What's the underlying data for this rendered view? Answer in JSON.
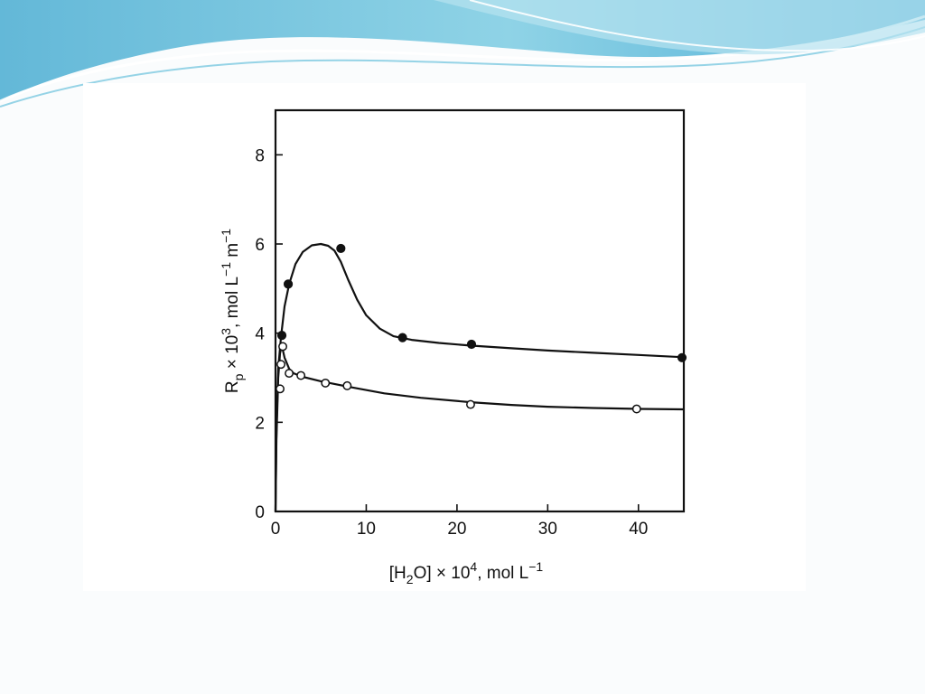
{
  "chart_data": {
    "type": "scatter",
    "xlabel": {
      "pre": "[H",
      "sub": "2",
      "mid": "O] × 10",
      "sup": "4",
      "post": ", mol L",
      "sup2": "−1"
    },
    "ylabel": {
      "pre": "R",
      "sub": "p",
      "mid": " × 10",
      "sup": "3",
      "mid2": ", mol L",
      "sup2": "−1",
      "mid3": " m",
      "sup3": "−1"
    },
    "xlim": [
      0,
      45
    ],
    "ylim": [
      0,
      9
    ],
    "x_ticks": [
      0,
      10,
      20,
      30,
      40
    ],
    "y_ticks": [
      0,
      2,
      4,
      6,
      8
    ],
    "grid": false,
    "colors": {
      "marker": "#111111",
      "line": "#111111",
      "open_fill": "#ffffff"
    },
    "series": [
      {
        "marker": "filled-circle",
        "points": [
          [
            0.7,
            3.95
          ],
          [
            1.4,
            5.1
          ],
          [
            7.2,
            5.9
          ],
          [
            14.0,
            3.9
          ],
          [
            21.6,
            3.75
          ],
          [
            44.8,
            3.45
          ]
        ],
        "curve": [
          [
            0,
            0
          ],
          [
            0.1,
            1.8
          ],
          [
            0.3,
            3.2
          ],
          [
            0.6,
            3.9
          ],
          [
            1.0,
            4.6
          ],
          [
            1.5,
            5.1
          ],
          [
            2.2,
            5.55
          ],
          [
            3.0,
            5.82
          ],
          [
            4.0,
            5.97
          ],
          [
            5.0,
            6.0
          ],
          [
            5.8,
            5.96
          ],
          [
            6.5,
            5.85
          ],
          [
            7.2,
            5.6
          ],
          [
            8.0,
            5.2
          ],
          [
            9.0,
            4.75
          ],
          [
            10.0,
            4.4
          ],
          [
            11.5,
            4.1
          ],
          [
            13.0,
            3.93
          ],
          [
            15.0,
            3.85
          ],
          [
            18.0,
            3.78
          ],
          [
            21.6,
            3.72
          ],
          [
            26.0,
            3.66
          ],
          [
            30.0,
            3.61
          ],
          [
            35.0,
            3.56
          ],
          [
            40.0,
            3.51
          ],
          [
            45.0,
            3.46
          ]
        ]
      },
      {
        "marker": "open-circle",
        "points": [
          [
            0.5,
            2.75
          ],
          [
            0.6,
            3.3
          ],
          [
            0.8,
            3.7
          ],
          [
            1.5,
            3.1
          ],
          [
            2.8,
            3.05
          ],
          [
            5.5,
            2.88
          ],
          [
            7.9,
            2.82
          ],
          [
            21.5,
            2.4
          ],
          [
            39.8,
            2.3
          ]
        ],
        "curve": [
          [
            0,
            0
          ],
          [
            0.1,
            1.6
          ],
          [
            0.3,
            3.0
          ],
          [
            0.5,
            3.55
          ],
          [
            0.7,
            3.72
          ],
          [
            1.0,
            3.45
          ],
          [
            1.5,
            3.2
          ],
          [
            2.0,
            3.1
          ],
          [
            3.0,
            3.02
          ],
          [
            5.0,
            2.92
          ],
          [
            8.0,
            2.8
          ],
          [
            12.0,
            2.65
          ],
          [
            16.0,
            2.55
          ],
          [
            21.5,
            2.45
          ],
          [
            26.0,
            2.39
          ],
          [
            30.0,
            2.35
          ],
          [
            35.0,
            2.32
          ],
          [
            40.0,
            2.3
          ],
          [
            45.0,
            2.29
          ]
        ]
      }
    ]
  }
}
